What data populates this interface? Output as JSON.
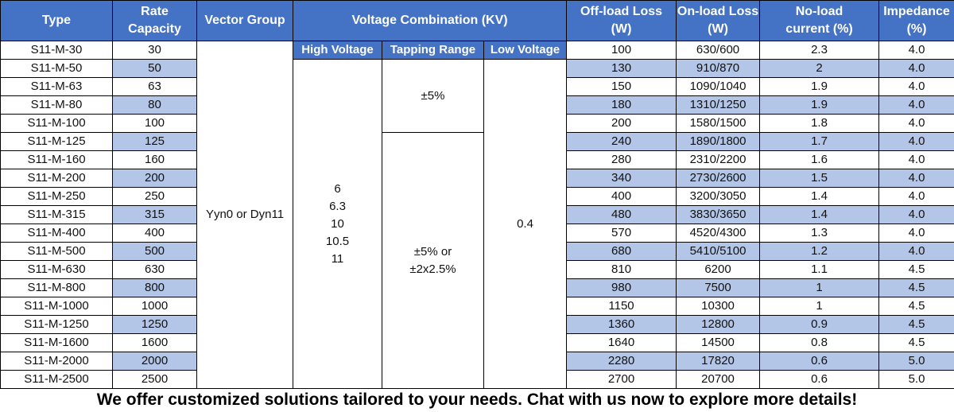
{
  "headers": {
    "type": "Type",
    "rate_capacity": [
      "Rate",
      "Capacity"
    ],
    "vector_group": "Vector Group",
    "voltage_combination": "Voltage Combination (KV)",
    "off_load_loss": [
      "Off-load Loss",
      "(W)"
    ],
    "on_load_loss": [
      "On-load Loss",
      "(W)"
    ],
    "no_load_current": [
      "No-load",
      "current  (%)"
    ],
    "impedance": [
      "Impedance",
      "(%)"
    ],
    "high_voltage": "High Voltage",
    "tapping_range": "Tapping Range",
    "low_voltage": "Low Voltage"
  },
  "merged": {
    "vector_group": "Yyn0 or Dyn11",
    "high_voltage": [
      "6",
      "6.3",
      "10",
      "10.5",
      "11"
    ],
    "tapping_small": "±5%",
    "tapping_large": [
      "±5% or",
      "±2x2.5%"
    ],
    "low_voltage": "0.4"
  },
  "rows": [
    {
      "type": "S11-M-30",
      "capacity": "30",
      "off": "100",
      "on": "630/600",
      "nl": "2.3",
      "imp": "4.0"
    },
    {
      "type": "S11-M-50",
      "capacity": "50",
      "off": "130",
      "on": "910/870",
      "nl": "2",
      "imp": "4.0"
    },
    {
      "type": "S11-M-63",
      "capacity": "63",
      "off": "150",
      "on": "1090/1040",
      "nl": "1.9",
      "imp": "4.0"
    },
    {
      "type": "S11-M-80",
      "capacity": "80",
      "off": "180",
      "on": "1310/1250",
      "nl": "1.9",
      "imp": "4.0"
    },
    {
      "type": "S11-M-100",
      "capacity": "100",
      "off": "200",
      "on": "1580/1500",
      "nl": "1.8",
      "imp": "4.0"
    },
    {
      "type": "S11-M-125",
      "capacity": "125",
      "off": "240",
      "on": "1890/1800",
      "nl": "1.7",
      "imp": "4.0"
    },
    {
      "type": "S11-M-160",
      "capacity": "160",
      "off": "280",
      "on": "2310/2200",
      "nl": "1.6",
      "imp": "4.0"
    },
    {
      "type": "S11-M-200",
      "capacity": "200",
      "off": "340",
      "on": "2730/2600",
      "nl": "1.5",
      "imp": "4.0"
    },
    {
      "type": "S11-M-250",
      "capacity": "250",
      "off": "400",
      "on": "3200/3050",
      "nl": "1.4",
      "imp": "4.0"
    },
    {
      "type": "S11-M-315",
      "capacity": "315",
      "off": "480",
      "on": "3830/3650",
      "nl": "1.4",
      "imp": "4.0"
    },
    {
      "type": "S11-M-400",
      "capacity": "400",
      "off": "570",
      "on": "4520/4300",
      "nl": "1.3",
      "imp": "4.0"
    },
    {
      "type": "S11-M-500",
      "capacity": "500",
      "off": "680",
      "on": "5410/5100",
      "nl": "1.2",
      "imp": "4.0"
    },
    {
      "type": "S11-M-630",
      "capacity": "630",
      "off": "810",
      "on": "6200",
      "nl": "1.1",
      "imp": "4.5"
    },
    {
      "type": "S11-M-800",
      "capacity": "800",
      "off": "980",
      "on": "7500",
      "nl": "1",
      "imp": "4.5"
    },
    {
      "type": "S11-M-1000",
      "capacity": "1000",
      "off": "1150",
      "on": "10300",
      "nl": "1",
      "imp": "4.5"
    },
    {
      "type": "S11-M-1250",
      "capacity": "1250",
      "off": "1360",
      "on": "12800",
      "nl": "0.9",
      "imp": "4.5"
    },
    {
      "type": "S11-M-1600",
      "capacity": "1600",
      "off": "1640",
      "on": "14500",
      "nl": "0.8",
      "imp": "4.5"
    },
    {
      "type": "S11-M-2000",
      "capacity": "2000",
      "off": "2280",
      "on": "17820",
      "nl": "0.6",
      "imp": "5.0"
    },
    {
      "type": "S11-M-2500",
      "capacity": "2500",
      "off": "2700",
      "on": "20700",
      "nl": "0.6",
      "imp": "5.0"
    }
  ],
  "colors": {
    "header_bg": "#4472c4",
    "header_text": "#ffffff",
    "alt_row_bg": "#b4c6e7",
    "plain_row_bg": "#ffffff"
  },
  "footer": "We offer customized solutions tailored to your needs. Chat with us now to explore more details!"
}
